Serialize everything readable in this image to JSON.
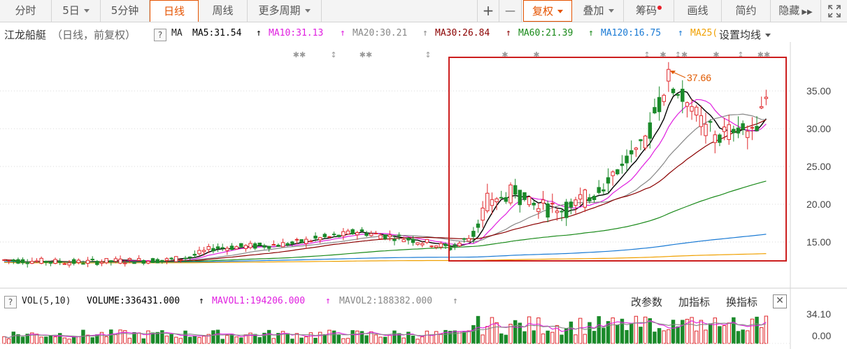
{
  "toolbar": {
    "tabs": [
      {
        "label": "分时"
      },
      {
        "label": "5日"
      },
      {
        "label": "5分钟"
      },
      {
        "label": "日线"
      },
      {
        "label": "周线"
      },
      {
        "label": "更多周期"
      }
    ],
    "right": {
      "plus": "+",
      "minus": "—",
      "fuquan": "复权",
      "diejia": "叠加",
      "chouma": "筹码",
      "huaxian": "画线",
      "jianyue": "简约",
      "yincang": "隐藏",
      "expand_icon": "expand-icon"
    }
  },
  "info": {
    "stock_name": "江龙船艇",
    "mode": "（日线，前复权）",
    "help": "?",
    "ma_label": "MA",
    "ma5": "MA5:31.54",
    "ma10": "MA10:31.13",
    "ma20": "MA20:30.21",
    "ma30": "MA30:26.84",
    "ma60": "MA60:21.39",
    "ma120": "MA120:16.75",
    "ma250": "MA25(",
    "set_ma": "设置均线",
    "up_arrow": "↑",
    "colors": {
      "ma5": "#000000",
      "ma10": "#e020e0",
      "ma20": "#888888",
      "ma30": "#8b0000",
      "ma60": "#1a8a1a",
      "ma120": "#1a7ad4",
      "ma250": "#f0a000"
    }
  },
  "chart_data": {
    "type": "candlestick",
    "price_ticks": [
      "35.00",
      "30.00",
      "25.00",
      "20.00",
      "15.00"
    ],
    "ylim": [
      11.5,
      38.5
    ],
    "max_label": "37.66",
    "vol_ticks": [
      "34.10",
      "0.00"
    ]
  },
  "vol": {
    "help": "?",
    "label": "VOL(5,10)",
    "volume": "VOLUME:336431.000",
    "mavol1": "MAVOL1:194206.000",
    "mavol2": "MAVOL2:188382.000",
    "arrow": "↑",
    "change_param": "改参数",
    "add_indicator": "加指标",
    "swap_indicator": "换指标",
    "close": "✕"
  }
}
